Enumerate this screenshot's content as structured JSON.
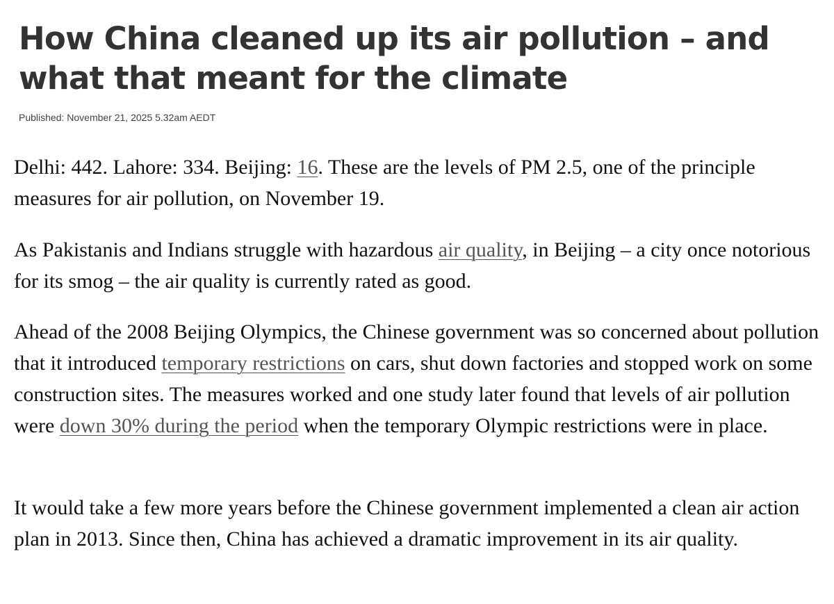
{
  "article": {
    "headline": "How China cleaned up its air pollution – and what that meant for the climate",
    "published": "Published: November 21, 2025 5.32am AEDT",
    "paragraphs": [
      {
        "before_link": "Delhi: 442. Lahore: 334. Beijing: ",
        "link": "16",
        "after_link": ". These are the levels of PM 2.5, one of the principle measures for air pollution, on November 19."
      },
      {
        "before_link": "As Pakistanis and Indians struggle with hazardous ",
        "link": "air quality",
        "after_link": ", in Beijing – a city once notorious for its smog – the air quality is currently rated as good."
      },
      {
        "before_link_1": "Ahead of the 2008 Beijing Olympics, the Chinese government was so concerned about pollution that it introduced ",
        "link_1": "temporary restrictions",
        "between_links": " on cars, shut down factories and stopped work on some construction sites. The measures worked and one study later found that levels of air pollution were ",
        "link_2": "down 30% during the period",
        "after_links": " when the temporary Olympic restrictions were in place."
      },
      {
        "text": "It would take a few more years before the Chinese government implemented a clean air action plan in 2013. Since then, China has achieved a dramatic improvement in its air quality."
      }
    ]
  },
  "colors": {
    "headline": "#333333",
    "body_text": "#111111",
    "link": "#555555",
    "background": "#ffffff"
  }
}
